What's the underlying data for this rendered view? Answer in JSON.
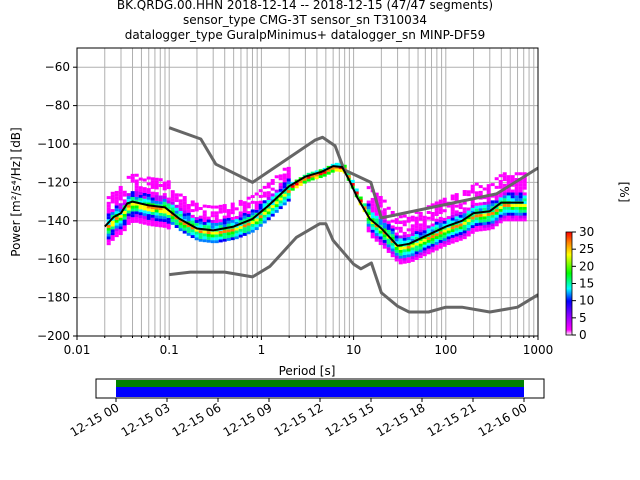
{
  "chart_data": {
    "type": "heatmap",
    "title_lines": [
      "BK.QRDG.00.HHN   2018-12-14 -- 2018-12-15  (47/47 segments)",
      "sensor_type CMG-3T sensor_sn T310034",
      "datalogger_type GuralpMinimus+ datalogger_sn MINP-DF59"
    ],
    "xlabel": "Period [s]",
    "ylabel": "Power [m²/s⁴/Hz] [dB]",
    "xscale": "log",
    "xlim": [
      0.01,
      1000
    ],
    "ylim": [
      -200,
      -50
    ],
    "xticks": [
      0.01,
      0.1,
      1,
      10,
      100,
      1000
    ],
    "xtick_labels": [
      "0.01",
      "0.1",
      "1",
      "10",
      "100",
      "1000"
    ],
    "yticks": [
      -60,
      -80,
      -100,
      -120,
      -140,
      -160,
      -180,
      -200
    ],
    "ytick_labels": [
      "−60",
      "−80",
      "−100",
      "−120",
      "−140",
      "−160",
      "−180",
      "−200"
    ],
    "grid": true,
    "colorbar": {
      "label": "[%]",
      "range": [
        0,
        30
      ],
      "ticks": [
        0,
        5,
        10,
        15,
        20,
        25,
        30
      ],
      "tick_labels": [
        "0",
        "5",
        "10",
        "15",
        "20",
        "25",
        "30"
      ],
      "colormap": [
        "#ffffff",
        "#ff00ff",
        "#0000ff",
        "#00ffff",
        "#00ff00",
        "#ffff00",
        "#ff0000"
      ]
    },
    "series": [
      {
        "name": "NHNM",
        "color": "#666666",
        "points": [
          [
            0.1,
            -91.5
          ],
          [
            0.22,
            -97.4
          ],
          [
            0.32,
            -110.5
          ],
          [
            0.8,
            -120
          ],
          [
            3.8,
            -98
          ],
          [
            4.6,
            -96.5
          ],
          [
            6.3,
            -101
          ],
          [
            7.9,
            -113.5
          ],
          [
            15.4,
            -120
          ],
          [
            20,
            -138.5
          ],
          [
            354.8,
            -126
          ],
          [
            1000,
            -112.5
          ]
        ]
      },
      {
        "name": "NLNM",
        "color": "#666666",
        "points": [
          [
            0.1,
            -168
          ],
          [
            0.17,
            -166.7
          ],
          [
            0.4,
            -166.7
          ],
          [
            0.8,
            -169.2
          ],
          [
            1.24,
            -163.7
          ],
          [
            2.4,
            -148.6
          ],
          [
            4.3,
            -141.5
          ],
          [
            5,
            -141.5
          ],
          [
            6,
            -150.2
          ],
          [
            10,
            -162.6
          ],
          [
            12,
            -165
          ],
          [
            15.6,
            -162
          ],
          [
            20,
            -177.5
          ],
          [
            30,
            -184.5
          ],
          [
            40,
            -187.5
          ],
          [
            65,
            -187.5
          ],
          [
            100,
            -185
          ],
          [
            150,
            -185
          ],
          [
            300,
            -187.5
          ],
          [
            600,
            -185
          ],
          [
            1000,
            -178.5
          ]
        ]
      },
      {
        "name": "mean",
        "color": "#000000",
        "points": [
          [
            0.02,
            -143
          ],
          [
            0.025,
            -138
          ],
          [
            0.03,
            -136
          ],
          [
            0.035,
            -131
          ],
          [
            0.04,
            -130
          ],
          [
            0.06,
            -132
          ],
          [
            0.09,
            -133
          ],
          [
            0.13,
            -139
          ],
          [
            0.2,
            -144
          ],
          [
            0.3,
            -145
          ],
          [
            0.5,
            -143
          ],
          [
            0.8,
            -139
          ],
          [
            1.2,
            -132
          ],
          [
            2,
            -122
          ],
          [
            3,
            -117
          ],
          [
            4.5,
            -114.5
          ],
          [
            6,
            -111.5
          ],
          [
            7.5,
            -112
          ],
          [
            9,
            -119
          ],
          [
            11,
            -128
          ],
          [
            15,
            -139
          ],
          [
            20,
            -144
          ],
          [
            30,
            -153
          ],
          [
            40,
            -152
          ],
          [
            60,
            -148
          ],
          [
            100,
            -143
          ],
          [
            150,
            -140
          ],
          [
            200,
            -136
          ],
          [
            300,
            -135
          ],
          [
            400,
            -130.5
          ],
          [
            700,
            -130.5
          ]
        ]
      }
    ],
    "scatter_band_note": "PPD histogram cells (percentage occurrence)",
    "timeline": {
      "ticks": [
        "12-15 00",
        "12-15 03",
        "12-15 06",
        "12-15 09",
        "12-15 12",
        "12-15 15",
        "12-15 18",
        "12-15 21",
        "12-16 00"
      ],
      "bands": [
        {
          "name": "data",
          "color": "#008000"
        },
        {
          "name": "used",
          "color": "#0000ff"
        }
      ]
    }
  }
}
